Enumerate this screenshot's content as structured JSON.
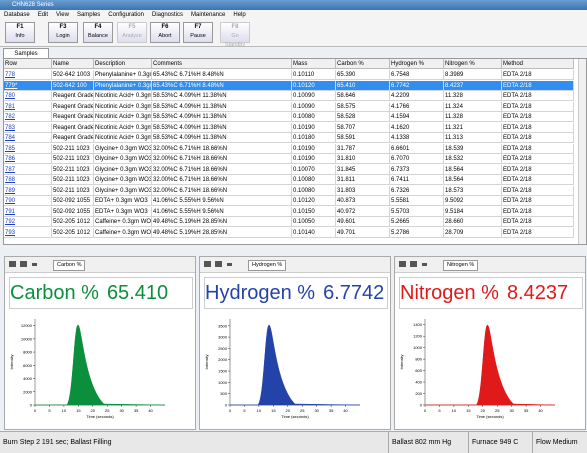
{
  "window": {
    "title": "CHN628 Series",
    "menu": [
      "Database",
      "Edit",
      "View",
      "Samples",
      "Configuration",
      "Diagnostics",
      "Maintenance",
      "Help"
    ],
    "toolbar": [
      {
        "key": "F1",
        "label": "Info",
        "enabled": true
      },
      {
        "key": "F3",
        "label": "Login",
        "enabled": true
      },
      {
        "key": "F4",
        "label": "Balance",
        "enabled": true
      },
      {
        "key": "F5",
        "label": "Analyze",
        "enabled": false
      },
      {
        "key": "F6",
        "label": "Abort",
        "enabled": true
      },
      {
        "key": "F7",
        "label": "Pause",
        "enabled": true
      },
      {
        "key": "F8",
        "label": "Go Standby",
        "enabled": false
      }
    ],
    "tab": "Samples"
  },
  "table": {
    "columns": [
      "Row",
      "Name",
      "Description",
      "Comments",
      "Mass",
      "Carbon %",
      "Hydrogen %",
      "Nitrogen %",
      "Method"
    ],
    "selected_row": 1,
    "rows": [
      [
        "778",
        "502-642 1003",
        "Phenylalanine+ 0.3gm",
        "65.43%C 6.71%H 8.48%N",
        "0.10110",
        "65.390",
        "6.7548",
        "8.3989",
        "EDTA 2/18"
      ],
      [
        "779*",
        "502-642 100",
        "Phenylalanine+ 0.3gm",
        "65.43%C 6.71%H 8.48%N",
        "0.10120",
        "65.410",
        "6.7742",
        "8.4237",
        "EDTA 2/18"
      ],
      [
        "780",
        "Reagent Grade",
        "Nicotinic Acid+ 0.3gm",
        "58.53%C 4.09%H 11.38%N",
        "0.10090",
        "58.646",
        "4.2209",
        "11.328",
        "EDTA 2/18"
      ],
      [
        "781",
        "Reagent Grade",
        "Nicotinic Acid+ 0.3gm",
        "58.53%C 4.09%H 11.38%N",
        "0.10090",
        "58.575",
        "4.1766",
        "11.324",
        "EDTA 2/18"
      ],
      [
        "782",
        "Reagent Grade",
        "Nicotinic Acid+ 0.3gm",
        "58.53%C 4.09%H 11.38%N",
        "0.10080",
        "58.528",
        "4.1594",
        "11.328",
        "EDTA 2/18"
      ],
      [
        "783",
        "Reagent Grade",
        "Nicotinic Acid+ 0.3gm",
        "58.53%C 4.09%H 11.38%N",
        "0.10190",
        "58.707",
        "4.1620",
        "11.321",
        "EDTA 2/18"
      ],
      [
        "784",
        "Reagent Grade",
        "Nicotinic Acid+ 0.3gm",
        "58.53%C 4.09%H 11.38%N",
        "0.10180",
        "58.591",
        "4.1338",
        "11.313",
        "EDTA 2/18"
      ],
      [
        "785",
        "502-211 1023",
        "Glycine+ 0.3gm WO3",
        "32.00%C 6.71%H 18.66%N",
        "0.10190",
        "31.787",
        "6.6601",
        "18.539",
        "EDTA 2/18"
      ],
      [
        "786",
        "502-211 1023",
        "Glycine+ 0.3gm WO3",
        "32.00%C 6.71%H 18.66%N",
        "0.10190",
        "31.810",
        "6.7070",
        "18.532",
        "EDTA 2/18"
      ],
      [
        "787",
        "502-211 1023",
        "Glycine+ 0.3gm WO3",
        "32.00%C 6.71%H 18.66%N",
        "0.10070",
        "31.845",
        "6.7373",
        "18.564",
        "EDTA 2/18"
      ],
      [
        "788",
        "502-211 1023",
        "Glycine+ 0.3gm WO3",
        "32.00%C 6.71%H 18.66%N",
        "0.10080",
        "31.811",
        "6.7411",
        "18.564",
        "EDTA 2/18"
      ],
      [
        "789",
        "502-211 1023",
        "Glycine+ 0.3gm WO3",
        "32.00%C 6.71%H 18.66%N",
        "0.10080",
        "31.803",
        "6.7326",
        "18.573",
        "EDTA 2/18"
      ],
      [
        "790",
        "502-092 1055",
        "EDTA+ 0.3gm WO3",
        "41.06%C 5.55%H 9.56%N",
        "0.10120",
        "40.873",
        "5.5581",
        "9.5092",
        "EDTA 2/18"
      ],
      [
        "791",
        "502-092 1055",
        "EDTA+ 0.3gm WO3",
        "41.06%C 5.55%H 9.56%N",
        "0.10150",
        "40.972",
        "5.5703",
        "9.5184",
        "EDTA 2/18"
      ],
      [
        "792",
        "502-205 1012",
        "Caffeine+ 0.3gm WO3",
        "49.48%C 5.19%H 28.85%N",
        "0.10050",
        "49.601",
        "5.2665",
        "28.660",
        "EDTA 2/18"
      ],
      [
        "793",
        "502-205 1012",
        "Caffeine+ 0.3gm WO3",
        "49.48%C 5.19%H 28.85%N",
        "0.10140",
        "49.701",
        "5.2786",
        "28.709",
        "EDTA 2/18"
      ]
    ]
  },
  "panels": [
    {
      "tab": "Carbon %",
      "label": "Carbon %",
      "value": "65.410",
      "color": "#0b8f3c",
      "ylabel": "Intensity",
      "xlabel": "Time (seconds)",
      "xlim": [
        0,
        45
      ],
      "xticks": [
        0,
        5,
        10,
        15,
        20,
        25,
        30,
        35,
        40
      ],
      "ylim": [
        0,
        13000
      ],
      "yticks": [
        0,
        2000,
        4000,
        6000,
        8000,
        10000,
        12000
      ]
    },
    {
      "tab": "Hydrogen %",
      "label": "Hydrogen %",
      "value": "6.7742",
      "color": "#2443a8",
      "ylabel": "Intensity",
      "xlabel": "Time (seconds)",
      "xlim": [
        0,
        45
      ],
      "xticks": [
        0,
        5,
        10,
        15,
        20,
        25,
        30,
        35,
        40
      ],
      "ylim": [
        0,
        3800
      ],
      "yticks": [
        0,
        500,
        1000,
        1500,
        2000,
        2500,
        3000,
        3500
      ]
    },
    {
      "tab": "Nitrogen %",
      "label": "Nitrogen %",
      "value": "8.4237",
      "color": "#e0191b",
      "ylabel": "Intensity",
      "xlabel": "Time (seconds)",
      "xlim": [
        0,
        45
      ],
      "xticks": [
        0,
        5,
        10,
        15,
        20,
        25,
        30,
        35,
        40
      ],
      "ylim": [
        0,
        1500
      ],
      "yticks": [
        0,
        200,
        400,
        600,
        800,
        1000,
        1200,
        1400
      ]
    }
  ],
  "status": [
    "Burn Step 2 191 sec; Ballast Filling",
    "Ballast 802 mm Hg",
    "Furnace 949 C",
    "Flow Medium"
  ]
}
